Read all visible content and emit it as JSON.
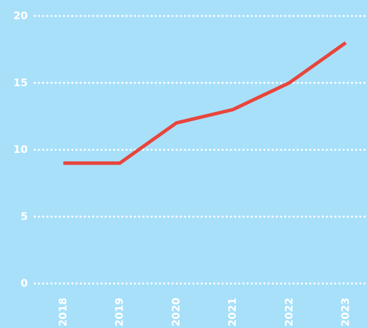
{
  "chart_data": {
    "type": "line",
    "categories": [
      "2018",
      "2019",
      "2020",
      "2021",
      "2022",
      "2023"
    ],
    "series": [
      {
        "color": "#e8453c",
        "values": [
          9,
          9,
          12,
          13,
          15,
          18
        ]
      }
    ],
    "ylim": [
      0,
      20
    ],
    "yticks": [
      0,
      5,
      10,
      15,
      20
    ],
    "grid": true
  }
}
